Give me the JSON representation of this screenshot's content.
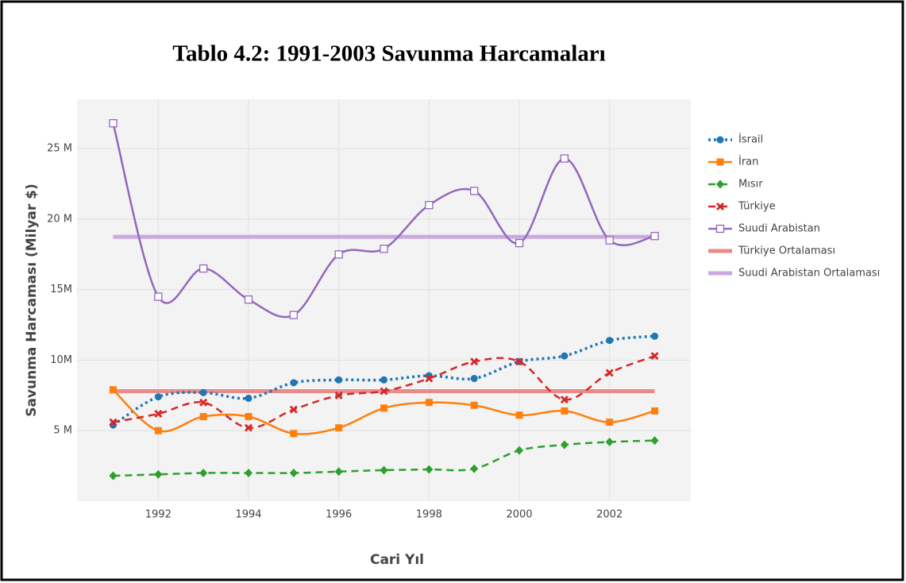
{
  "chart_data": {
    "type": "line",
    "title": "Tablo 4.2: 1991-2003 Savunma Harcamaları",
    "x_label": "Cari Yıl",
    "y_label": "Savunma Harcaması (Milyar $)",
    "x": [
      1991,
      1992,
      1993,
      1994,
      1995,
      1996,
      1997,
      1998,
      1999,
      2000,
      2001,
      2002,
      2003
    ],
    "xlim": [
      1990.2,
      2003.8
    ],
    "xticks": [
      1992,
      1994,
      1996,
      1998,
      2000,
      2002
    ],
    "ylim": [
      0,
      28.5
    ],
    "yticks": [
      {
        "value": 5,
        "label": "5 M"
      },
      {
        "value": 10,
        "label": "10M"
      },
      {
        "value": 15,
        "label": "15M"
      },
      {
        "value": 20,
        "label": "20 M"
      },
      {
        "value": 25,
        "label": "25 M"
      }
    ],
    "grid": true,
    "legend": "right",
    "series": [
      {
        "name": "İsrail",
        "color": "#1f77b4",
        "dash": "dot",
        "marker": "circle",
        "values": [
          5.4,
          7.4,
          7.7,
          7.3,
          8.4,
          8.6,
          8.6,
          8.9,
          8.7,
          9.9,
          10.3,
          11.4,
          11.7
        ]
      },
      {
        "name": "İran",
        "color": "#ff7f0e",
        "dash": "solid",
        "marker": "square",
        "values": [
          7.9,
          5.0,
          6.0,
          6.0,
          4.8,
          5.2,
          6.6,
          7.0,
          6.8,
          6.1,
          6.4,
          5.6,
          6.4
        ]
      },
      {
        "name": "Mısır",
        "color": "#2ca02c",
        "dash": "dash",
        "marker": "diamond",
        "values": [
          1.8,
          1.9,
          2.0,
          2.0,
          2.0,
          2.1,
          2.2,
          2.25,
          2.3,
          3.6,
          4.0,
          4.2,
          4.3
        ]
      },
      {
        "name": "Türkiye",
        "color": "#d62728",
        "dash": "dash",
        "marker": "x",
        "values": [
          5.6,
          6.2,
          7.0,
          5.2,
          6.5,
          7.5,
          7.8,
          8.7,
          9.9,
          9.9,
          7.2,
          9.1,
          10.3
        ]
      },
      {
        "name": "Suudi Arabistan",
        "color": "#9467bd",
        "dash": "solid",
        "marker": "open-square",
        "values": [
          26.8,
          14.5,
          16.5,
          14.3,
          13.2,
          17.5,
          17.9,
          21.0,
          22.0,
          18.3,
          24.3,
          18.5,
          18.8
        ]
      }
    ],
    "reference_lines": [
      {
        "name": "Türkiye Ortalaması",
        "color": "#e88b8b",
        "value": 7.8
      },
      {
        "name": "Suudi Arabistan Ortalaması",
        "color": "#c9a9e0",
        "value": 18.75
      }
    ]
  }
}
